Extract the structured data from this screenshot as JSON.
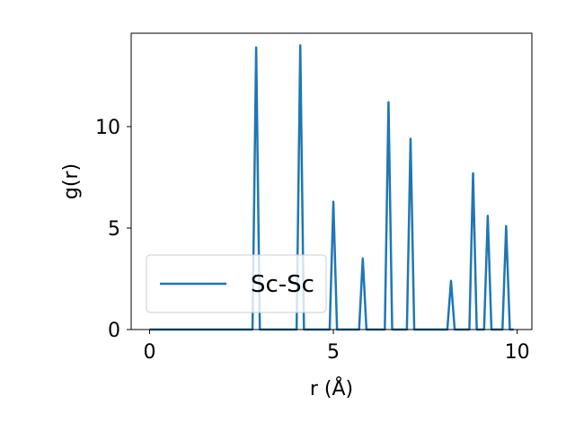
{
  "chart_data": {
    "type": "line",
    "xlabel": "r (Å)",
    "ylabel": "g(r)",
    "xlim": [
      -0.5,
      10.4
    ],
    "ylim": [
      0,
      14.6
    ],
    "x_ticks": [
      0,
      5,
      10
    ],
    "y_ticks": [
      0,
      5,
      10
    ],
    "x_tick_labels": [
      "0",
      "5",
      "10"
    ],
    "y_tick_labels": [
      "0",
      "5",
      "10"
    ],
    "grid": false,
    "legend_position": "lower left",
    "colors": {
      "line": "#1f77b4"
    },
    "series": [
      {
        "name": "Sc-Sc",
        "x": [
          0,
          2.8,
          2.9,
          3.0,
          4.0,
          4.1,
          4.2,
          4.9,
          5.0,
          5.1,
          5.7,
          5.8,
          5.9,
          6.4,
          6.5,
          6.6,
          7.0,
          7.1,
          7.2,
          8.1,
          8.2,
          8.3,
          8.7,
          8.8,
          8.9,
          9.1,
          9.2,
          9.3,
          9.6,
          9.7,
          9.8,
          9.9
        ],
        "y": [
          0,
          0,
          13.9,
          0,
          0,
          14.0,
          0,
          0,
          6.3,
          0,
          0,
          3.5,
          0,
          0,
          11.2,
          0,
          0,
          9.4,
          0,
          0,
          2.4,
          0,
          0,
          7.7,
          0,
          0,
          5.6,
          0,
          0,
          5.1,
          0,
          0
        ]
      }
    ]
  }
}
